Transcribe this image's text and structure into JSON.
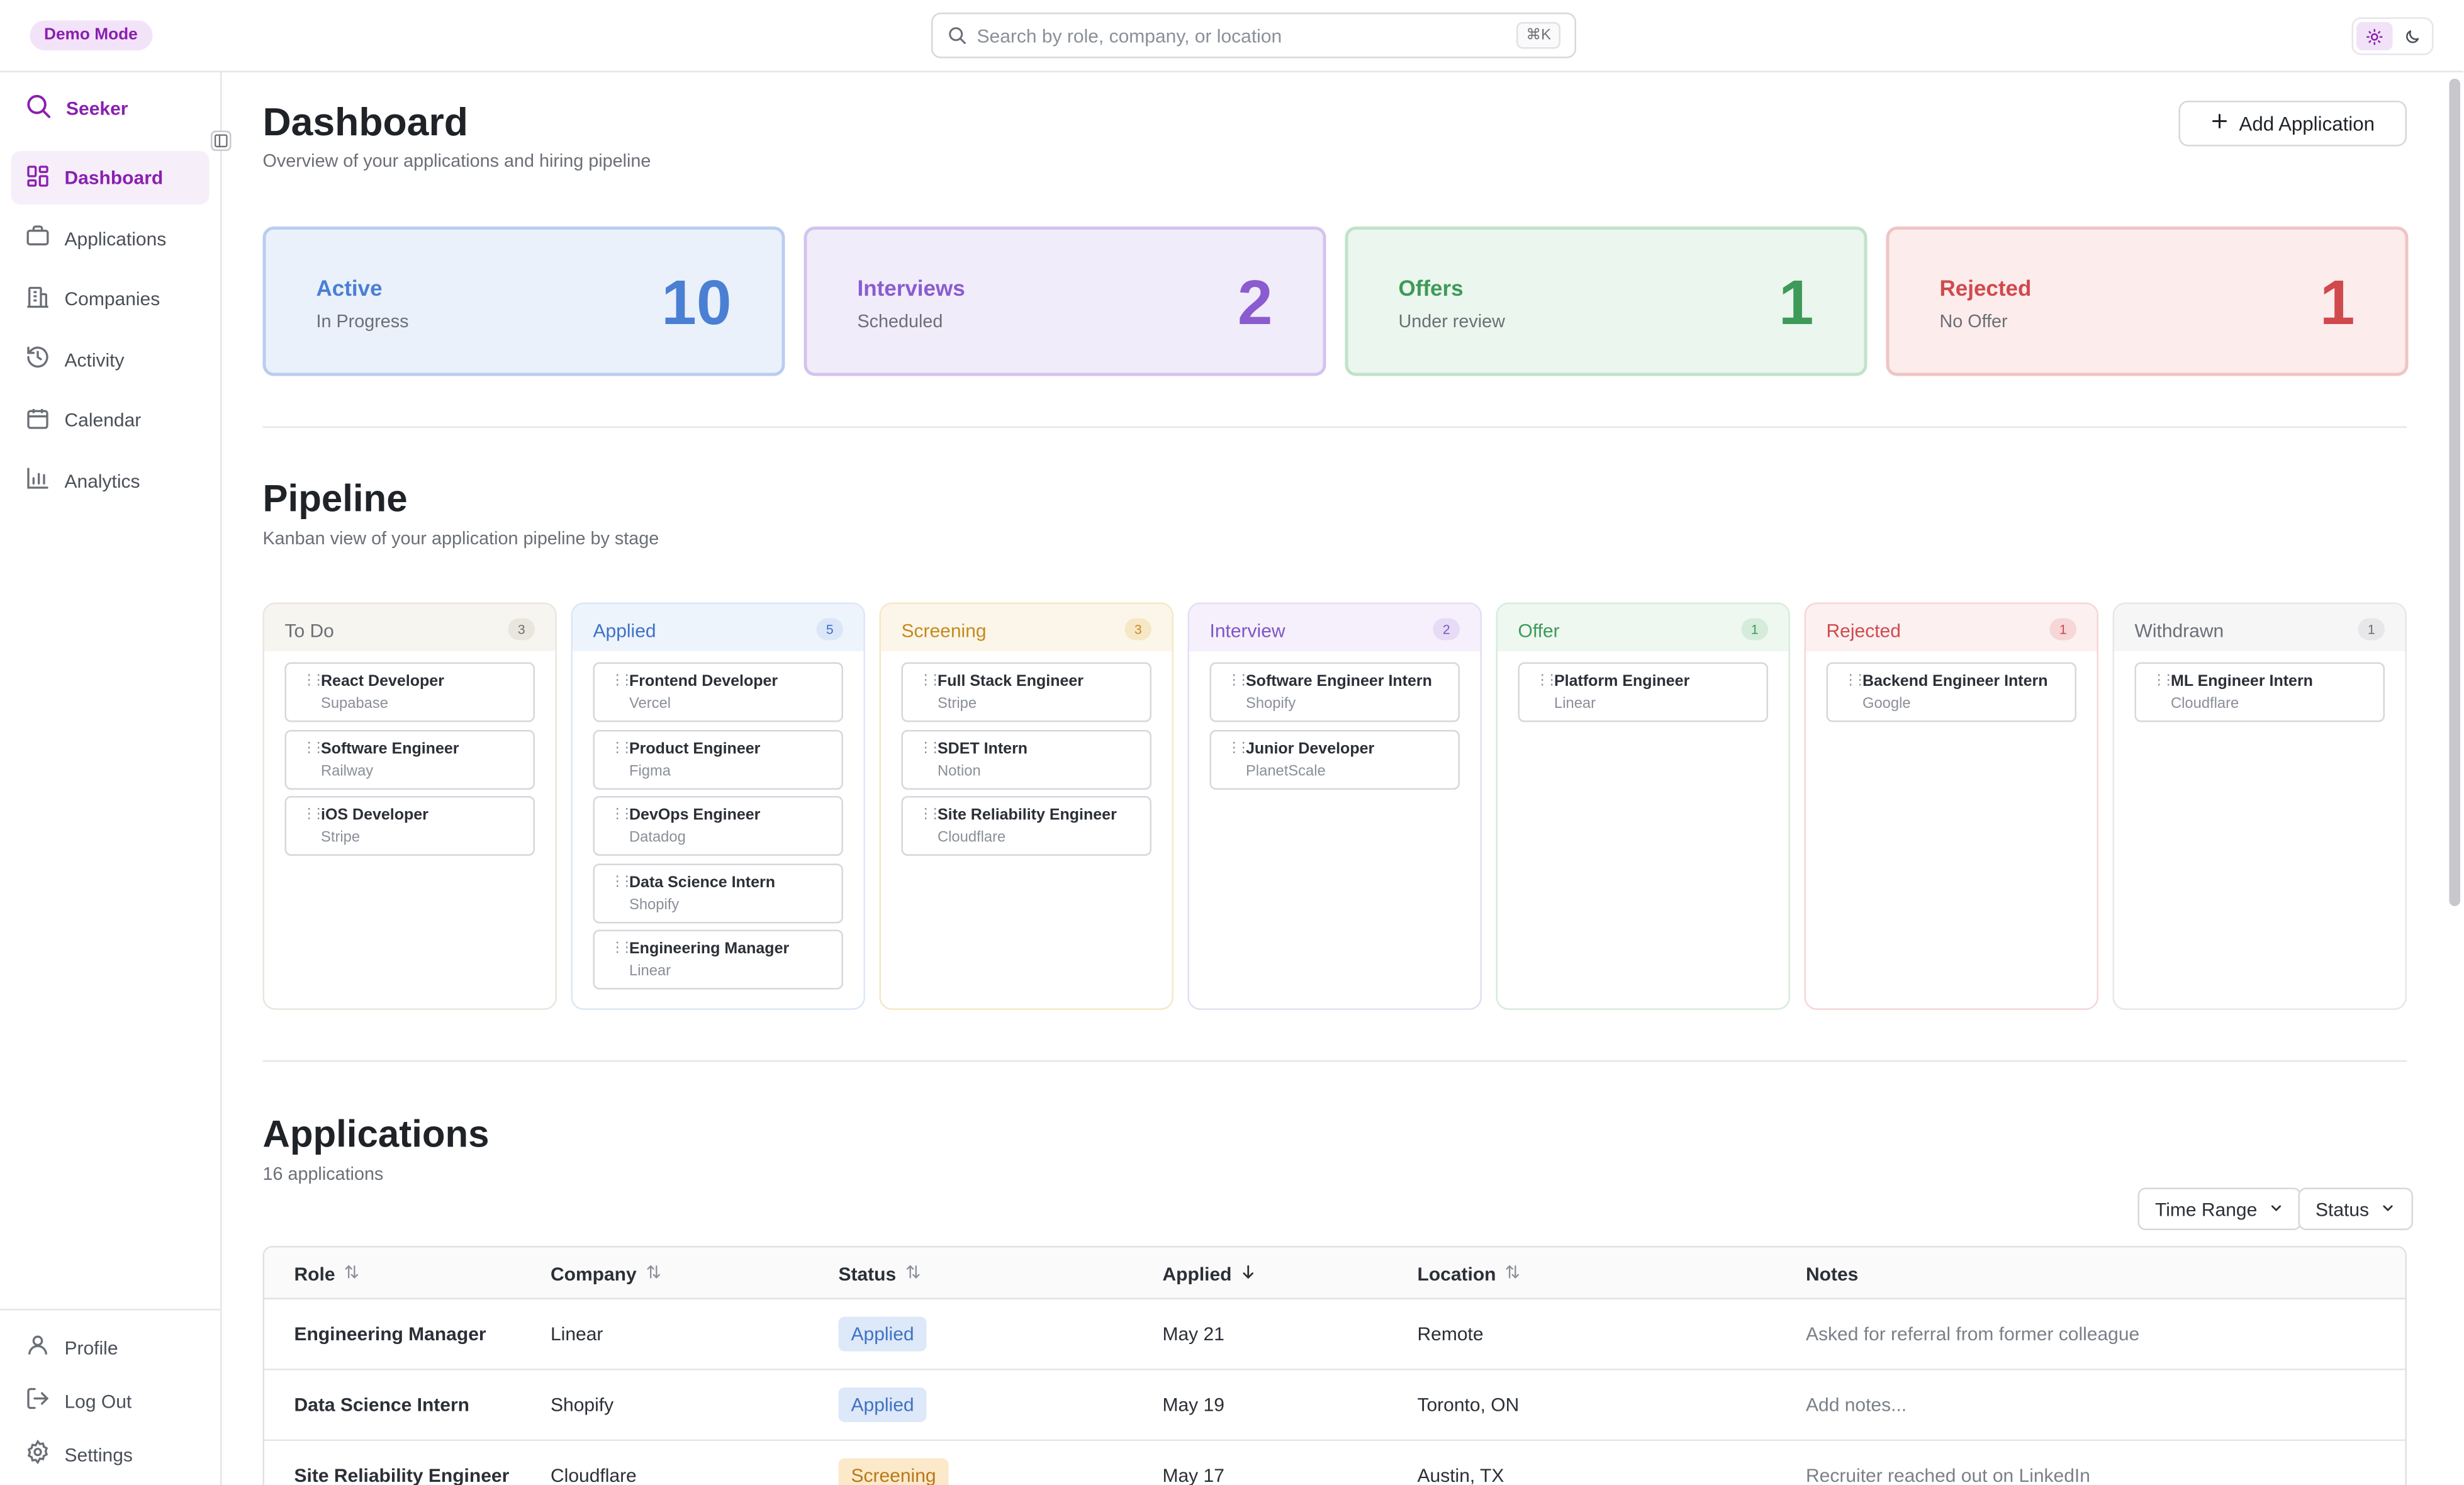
{
  "topbar": {
    "demo_badge": "Demo Mode",
    "search_placeholder": "Search by role, company, or location",
    "search_shortcut": "⌘K"
  },
  "sidebar": {
    "brand": "Seeker",
    "nav": [
      {
        "label": "Dashboard",
        "icon": "dashboard-icon",
        "active": true
      },
      {
        "label": "Applications",
        "icon": "briefcase-icon"
      },
      {
        "label": "Companies",
        "icon": "building-icon"
      },
      {
        "label": "Activity",
        "icon": "history-icon"
      },
      {
        "label": "Calendar",
        "icon": "calendar-icon"
      },
      {
        "label": "Analytics",
        "icon": "bar-chart-icon"
      }
    ],
    "bottom": [
      {
        "label": "Profile",
        "icon": "user-icon"
      },
      {
        "label": "Log Out",
        "icon": "logout-icon"
      },
      {
        "label": "Settings",
        "icon": "gear-icon"
      }
    ]
  },
  "header": {
    "title": "Dashboard",
    "subtitle": "Overview of your applications and hiring pipeline",
    "add_button": "Add Application"
  },
  "stats": [
    {
      "label": "Active",
      "sub": "In Progress",
      "value": "10",
      "color": "#4a7fd4",
      "bg": "#eaf1fb",
      "border": "#b9cdf0"
    },
    {
      "label": "Interviews",
      "sub": "Scheduled",
      "value": "2",
      "color": "#8a5ccf",
      "bg": "#f1ecfa",
      "border": "#d3c3ef"
    },
    {
      "label": "Offers",
      "sub": "Under review",
      "value": "1",
      "color": "#3e9a58",
      "bg": "#ebf6ee",
      "border": "#bfe3c8"
    },
    {
      "label": "Rejected",
      "sub": "No Offer",
      "value": "1",
      "color": "#d0494d",
      "bg": "#fcecec",
      "border": "#f0c4c5"
    }
  ],
  "pipeline": {
    "title": "Pipeline",
    "subtitle": "Kanban view of your application pipeline by stage",
    "columns": [
      {
        "name": "To Do",
        "count": "3",
        "color": "#6b6f76",
        "head_bg": "#f7f5ef",
        "badge_bg": "#e9e6de",
        "cards": [
          {
            "role": "React Developer",
            "company": "Supabase"
          },
          {
            "role": "Software Engineer",
            "company": "Railway"
          },
          {
            "role": "iOS Developer",
            "company": "Stripe"
          }
        ]
      },
      {
        "name": "Applied",
        "count": "5",
        "color": "#3f72c4",
        "head_bg": "#eef4fc",
        "badge_bg": "#dbe6f8",
        "cards": [
          {
            "role": "Frontend Developer",
            "company": "Vercel"
          },
          {
            "role": "Product Engineer",
            "company": "Figma"
          },
          {
            "role": "DevOps Engineer",
            "company": "Datadog"
          },
          {
            "role": "Data Science Intern",
            "company": "Shopify"
          },
          {
            "role": "Engineering Manager",
            "company": "Linear"
          }
        ]
      },
      {
        "name": "Screening",
        "count": "3",
        "color": "#c58a1c",
        "head_bg": "#fcf6ea",
        "badge_bg": "#f6e7c6",
        "cards": [
          {
            "role": "Full Stack Engineer",
            "company": "Stripe"
          },
          {
            "role": "SDET Intern",
            "company": "Notion"
          },
          {
            "role": "Site Reliability Engineer",
            "company": "Cloudflare"
          }
        ]
      },
      {
        "name": "Interview",
        "count": "2",
        "color": "#7f55c6",
        "head_bg": "#f5f0fb",
        "badge_bg": "#e6dcf6",
        "cards": [
          {
            "role": "Software Engineer Intern",
            "company": "Shopify"
          },
          {
            "role": "Junior Developer",
            "company": "PlanetScale"
          }
        ]
      },
      {
        "name": "Offer",
        "count": "1",
        "color": "#3e9a58",
        "head_bg": "#eef7f0",
        "badge_bg": "#d5ecdb",
        "cards": [
          {
            "role": "Platform Engineer",
            "company": "Linear"
          }
        ]
      },
      {
        "name": "Rejected",
        "count": "1",
        "color": "#d0494d",
        "head_bg": "#fcf0f0",
        "badge_bg": "#f6d6d7",
        "cards": [
          {
            "role": "Backend Engineer Intern",
            "company": "Google"
          }
        ]
      },
      {
        "name": "Withdrawn",
        "count": "1",
        "color": "#6b6f76",
        "head_bg": "#f6f6f7",
        "badge_bg": "#e7e7ea",
        "cards": [
          {
            "role": "ML Engineer Intern",
            "company": "Cloudflare"
          }
        ]
      }
    ]
  },
  "applications": {
    "title": "Applications",
    "count_label": "16 applications",
    "filters": [
      "Time Range",
      "Status"
    ],
    "columns": [
      "Role",
      "Company",
      "Status",
      "Applied",
      "Location",
      "Notes"
    ],
    "rows": [
      {
        "role": "Engineering Manager",
        "company": "Linear",
        "status": "Applied",
        "applied": "May 21",
        "location": "Remote",
        "notes": "Asked for referral from former colleague"
      },
      {
        "role": "Data Science Intern",
        "company": "Shopify",
        "status": "Applied",
        "applied": "May 19",
        "location": "Toronto, ON",
        "notes": "Add notes..."
      },
      {
        "role": "Site Reliability Engineer",
        "company": "Cloudflare",
        "status": "Screening",
        "applied": "May 17",
        "location": "Austin, TX",
        "notes": "Recruiter reached out on LinkedIn"
      }
    ]
  },
  "colors": {
    "accent": "#8a1fb0",
    "applied_badge_bg": "#dde8f8",
    "applied_badge_fg": "#3f72c4",
    "screening_badge_bg": "#fbe9c9",
    "screening_badge_fg": "#b9781a"
  }
}
